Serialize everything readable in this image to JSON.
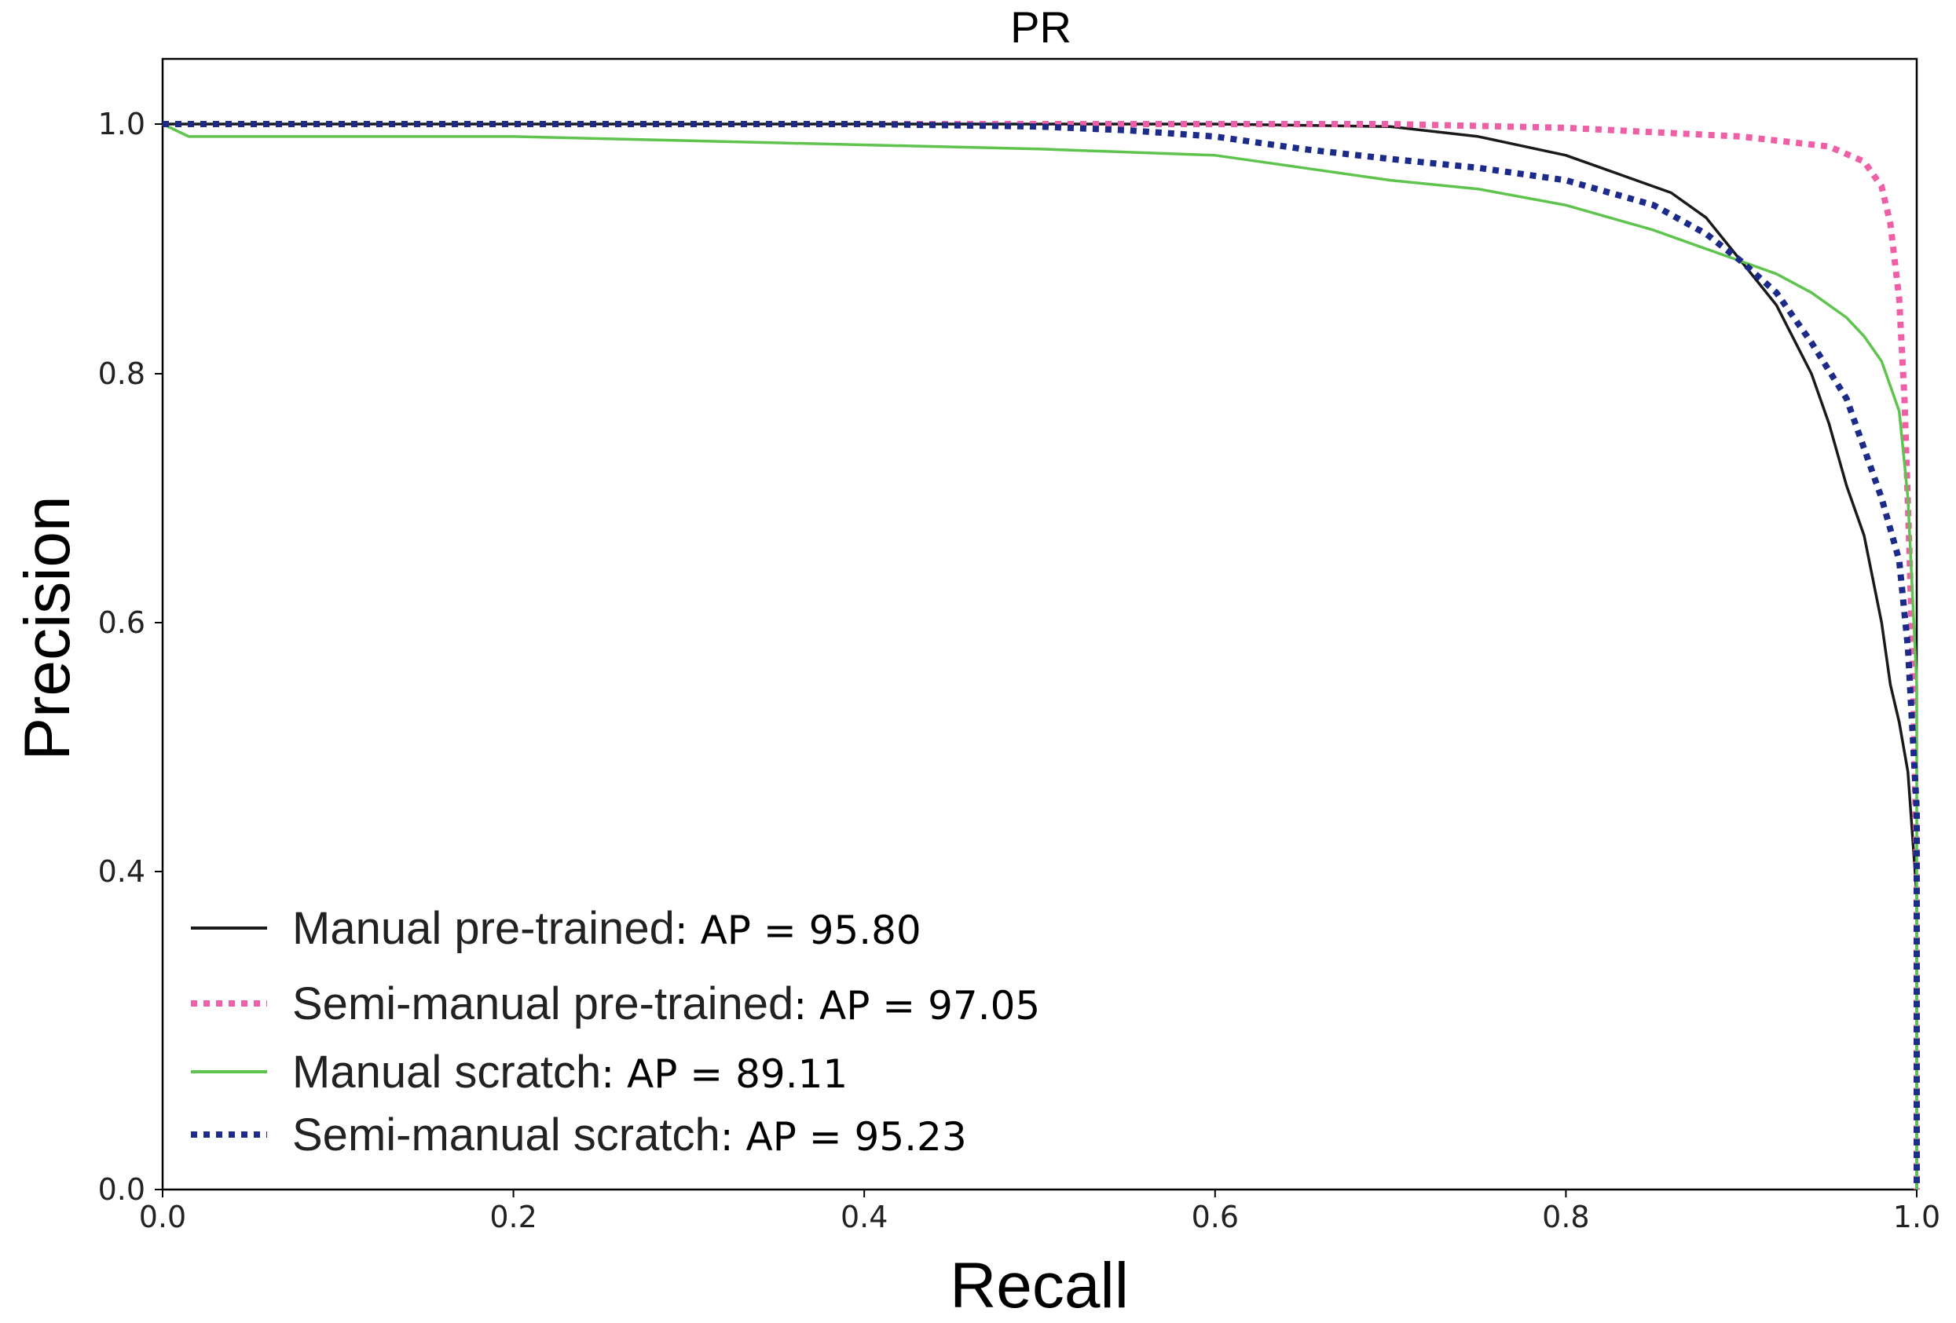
{
  "chart_data": {
    "type": "line",
    "title": "PR",
    "xlabel": "Recall",
    "ylabel": "Precision",
    "xlim": [
      0.0,
      1.0
    ],
    "ylim": [
      0.0,
      1.05
    ],
    "grid": false,
    "legend_position": "lower-left",
    "x_ticks": [
      {
        "value": 0.0,
        "label": "0.0"
      },
      {
        "value": 0.2,
        "label": "0.2"
      },
      {
        "value": 0.4,
        "label": "0.4"
      },
      {
        "value": 0.6,
        "label": "0.6"
      },
      {
        "value": 0.8,
        "label": "0.8"
      },
      {
        "value": 1.0,
        "label": "1.0"
      }
    ],
    "y_ticks": [
      {
        "value": 0.0,
        "label": "0.0"
      },
      {
        "value": 0.4,
        "label": "0.4"
      },
      {
        "value": 0.6,
        "label": "0.6"
      },
      {
        "value": 0.8,
        "label": "0.8"
      },
      {
        "value": 1.0,
        "label": "1.0"
      }
    ],
    "series": [
      {
        "name": "Manual pre-trained",
        "ap_label": ": AP = 95.80",
        "color": "#1a1a1a",
        "style": "solid",
        "x": [
          0.0,
          0.1,
          0.3,
          0.5,
          0.6,
          0.7,
          0.75,
          0.8,
          0.83,
          0.86,
          0.88,
          0.9,
          0.92,
          0.94,
          0.95,
          0.96,
          0.97,
          0.98,
          0.985,
          0.99,
          0.995,
          1.0,
          1.0
        ],
        "y": [
          1.0,
          1.0,
          1.0,
          1.0,
          1.0,
          0.998,
          0.99,
          0.975,
          0.96,
          0.945,
          0.925,
          0.89,
          0.855,
          0.8,
          0.76,
          0.71,
          0.67,
          0.6,
          0.55,
          0.52,
          0.48,
          0.37,
          0.0
        ]
      },
      {
        "name": "Semi-manual pre-trained",
        "ap_label": ": AP = 97.05",
        "color": "#ef5fa7",
        "style": "dotted",
        "x": [
          0.0,
          0.2,
          0.4,
          0.6,
          0.7,
          0.8,
          0.9,
          0.95,
          0.97,
          0.98,
          0.985,
          0.99,
          0.993,
          0.996,
          0.998,
          1.0,
          1.0
        ],
        "y": [
          1.0,
          1.0,
          1.0,
          1.0,
          1.0,
          0.997,
          0.99,
          0.982,
          0.97,
          0.95,
          0.92,
          0.86,
          0.78,
          0.65,
          0.55,
          0.4,
          0.0
        ]
      },
      {
        "name": "Manual scratch",
        "ap_label": ": AP = 89.11",
        "color": "#5ec44e",
        "style": "solid",
        "x": [
          0.0,
          0.015,
          0.1,
          0.2,
          0.35,
          0.5,
          0.6,
          0.65,
          0.7,
          0.75,
          0.8,
          0.85,
          0.88,
          0.9,
          0.92,
          0.94,
          0.96,
          0.97,
          0.98,
          0.99,
          0.995,
          1.0,
          1.0
        ],
        "y": [
          1.0,
          0.99,
          0.99,
          0.99,
          0.985,
          0.98,
          0.975,
          0.965,
          0.955,
          0.948,
          0.935,
          0.915,
          0.9,
          0.89,
          0.88,
          0.865,
          0.845,
          0.83,
          0.81,
          0.77,
          0.7,
          0.55,
          0.0
        ]
      },
      {
        "name": "Semi-manual scratch",
        "ap_label": ": AP = 95.23",
        "color": "#1c2a8a",
        "style": "dotted",
        "x": [
          0.0,
          0.2,
          0.4,
          0.5,
          0.55,
          0.6,
          0.65,
          0.7,
          0.75,
          0.8,
          0.85,
          0.88,
          0.9,
          0.92,
          0.94,
          0.96,
          0.97,
          0.98,
          0.99,
          0.995,
          1.0,
          1.0
        ],
        "y": [
          1.0,
          1.0,
          1.0,
          0.998,
          0.995,
          0.99,
          0.98,
          0.972,
          0.965,
          0.955,
          0.935,
          0.912,
          0.89,
          0.865,
          0.825,
          0.78,
          0.74,
          0.7,
          0.65,
          0.58,
          0.45,
          0.0
        ]
      }
    ]
  }
}
